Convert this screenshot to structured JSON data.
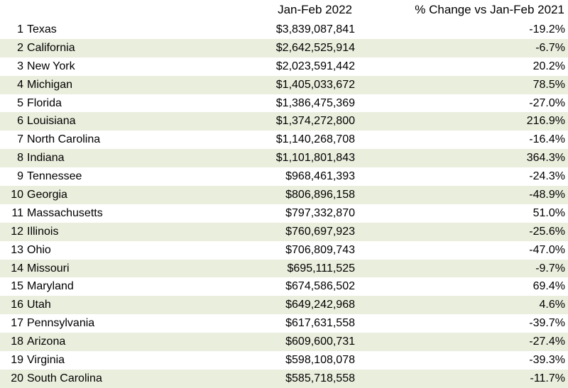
{
  "chart_data": {
    "type": "table",
    "columns": [
      "",
      "",
      "Jan-Feb 2022",
      "% Change vs Jan-Feb 2021"
    ],
    "rows": [
      {
        "rank": "1",
        "state": "Texas",
        "value": "$3,839,087,841",
        "change": "-19.2%"
      },
      {
        "rank": "2",
        "state": "California",
        "value": "$2,642,525,914",
        "change": "-6.7%"
      },
      {
        "rank": "3",
        "state": "New York",
        "value": "$2,023,591,442",
        "change": "20.2%"
      },
      {
        "rank": "4",
        "state": "Michigan",
        "value": "$1,405,033,672",
        "change": "78.5%"
      },
      {
        "rank": "5",
        "state": "Florida",
        "value": "$1,386,475,369",
        "change": "-27.0%"
      },
      {
        "rank": "6",
        "state": "Louisiana",
        "value": "$1,374,272,800",
        "change": "216.9%"
      },
      {
        "rank": "7",
        "state": "North Carolina",
        "value": "$1,140,268,708",
        "change": "-16.4%"
      },
      {
        "rank": "8",
        "state": "Indiana",
        "value": "$1,101,801,843",
        "change": "364.3%"
      },
      {
        "rank": "9",
        "state": "Tennessee",
        "value": "$968,461,393",
        "change": "-24.3%"
      },
      {
        "rank": "10",
        "state": "Georgia",
        "value": "$806,896,158",
        "change": "-48.9%"
      },
      {
        "rank": "11",
        "state": "Massachusetts",
        "value": "$797,332,870",
        "change": "51.0%"
      },
      {
        "rank": "12",
        "state": "Illinois",
        "value": "$760,697,923",
        "change": "-25.6%"
      },
      {
        "rank": "13",
        "state": "Ohio",
        "value": "$706,809,743",
        "change": "-47.0%"
      },
      {
        "rank": "14",
        "state": "Missouri",
        "value": "$695,111,525",
        "change": "-9.7%"
      },
      {
        "rank": "15",
        "state": "Maryland",
        "value": "$674,586,502",
        "change": "69.4%"
      },
      {
        "rank": "16",
        "state": "Utah",
        "value": "$649,242,968",
        "change": "4.6%"
      },
      {
        "rank": "17",
        "state": "Pennsylvania",
        "value": "$617,631,558",
        "change": "-39.7%"
      },
      {
        "rank": "18",
        "state": "Arizona",
        "value": "$609,600,731",
        "change": "-27.4%"
      },
      {
        "rank": "19",
        "state": "Virginia",
        "value": "$598,108,078",
        "change": "-39.3%"
      },
      {
        "rank": "20",
        "state": "South Carolina",
        "value": "$585,718,558",
        "change": "-11.7%"
      }
    ],
    "stripe_color": "#eaeedd"
  }
}
